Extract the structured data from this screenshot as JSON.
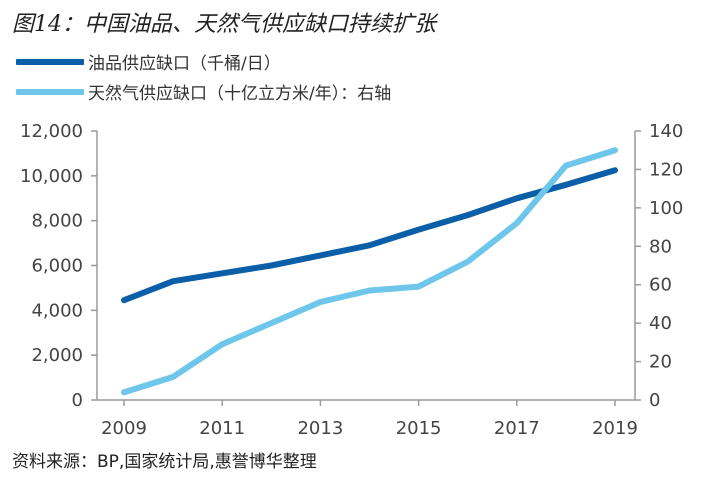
{
  "title": "图14：中国油品、天然气供应缺口持续扩张",
  "source": "资料来源：BP,国家统计局,惠誉博华整理",
  "colors": {
    "oil": "#0b5ea8",
    "gas": "#6ec6ea",
    "axis": "#9a9a9a"
  },
  "chart_data": {
    "type": "line",
    "x": [
      2009,
      2010,
      2011,
      2012,
      2013,
      2014,
      2015,
      2016,
      2017,
      2018,
      2019
    ],
    "xticks": [
      "2009",
      "2011",
      "2013",
      "2015",
      "2017",
      "2019"
    ],
    "series": [
      {
        "name": "油品供应缺口（千桶/日）",
        "axis": "left",
        "values": [
          4450,
          5300,
          5650,
          6000,
          6450,
          6900,
          7600,
          8250,
          9000,
          9600,
          10250
        ]
      },
      {
        "name": "天然气供应缺口（十亿立方米/年）：右轴",
        "axis": "right",
        "values": [
          4,
          12,
          29,
          40,
          51,
          57,
          59,
          72,
          92,
          122,
          130
        ]
      }
    ],
    "ylim_left": [
      0,
      12000
    ],
    "yticks_left": [
      "0",
      "2,000",
      "4,000",
      "6,000",
      "8,000",
      "10,000",
      "12,000"
    ],
    "ylim_right": [
      0,
      140
    ],
    "yticks_right": [
      "0",
      "20",
      "40",
      "60",
      "80",
      "100",
      "120",
      "140"
    ],
    "grid": false,
    "legend_position": "top-left"
  }
}
